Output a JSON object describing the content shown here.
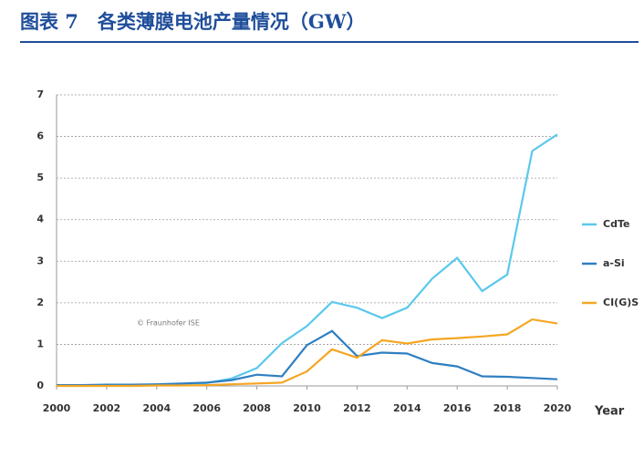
{
  "chart_data": {
    "type": "line",
    "title": "图表 7　各类薄膜电池产量情况（GW）",
    "annotation": "© Fraunhofer ISE",
    "x_label": "Year",
    "x": [
      2000,
      2001,
      2002,
      2003,
      2004,
      2005,
      2006,
      2007,
      2008,
      2009,
      2010,
      2011,
      2012,
      2013,
      2014,
      2015,
      2016,
      2017,
      2018,
      2019,
      2020
    ],
    "series": [
      {
        "name": "CdTe",
        "color": "#5bc8ec",
        "values": [
          0.01,
          0.01,
          0.02,
          0.02,
          0.03,
          0.05,
          0.07,
          0.18,
          0.43,
          1.03,
          1.44,
          2.02,
          1.88,
          1.63,
          1.88,
          2.58,
          3.08,
          2.28,
          2.68,
          5.65,
          6.05
        ]
      },
      {
        "name": "a-Si",
        "color": "#2f7fc1",
        "values": [
          0.02,
          0.02,
          0.03,
          0.03,
          0.04,
          0.06,
          0.08,
          0.14,
          0.27,
          0.23,
          0.98,
          1.32,
          0.72,
          0.8,
          0.78,
          0.55,
          0.47,
          0.23,
          0.22,
          0.19,
          0.16
        ]
      },
      {
        "name": "CI(G)S",
        "color": "#f5a623",
        "values": [
          0,
          0,
          0,
          0,
          0.01,
          0.01,
          0.02,
          0.04,
          0.06,
          0.08,
          0.35,
          0.88,
          0.68,
          1.1,
          1.02,
          1.12,
          1.15,
          1.19,
          1.24,
          1.6,
          1.5
        ]
      }
    ],
    "xlim": [
      2000,
      2020
    ],
    "xticks": [
      2000,
      2002,
      2004,
      2006,
      2008,
      2010,
      2012,
      2014,
      2016,
      2018,
      2020
    ],
    "ylim": [
      0,
      7
    ],
    "yticks": [
      0,
      1,
      2,
      3,
      4,
      5,
      6,
      7
    ],
    "grid": true
  }
}
